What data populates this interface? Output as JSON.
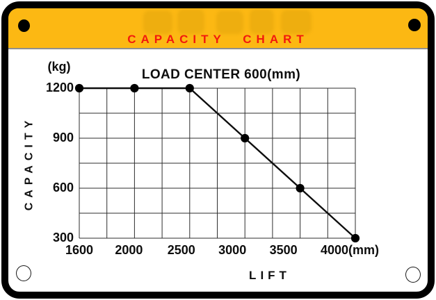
{
  "header": {
    "title": "CAPACITY CHART",
    "band_color": "#fcb813",
    "title_color": "#f2190d"
  },
  "chart_data": {
    "type": "line",
    "title": "LOAD CENTER 600(mm)",
    "xlabel": "LIFT",
    "ylabel": "CAPACITY",
    "y_unit": "(kg)",
    "x_unit": "(mm)",
    "x": [
      1600,
      2000,
      2500,
      3000,
      3500,
      4000
    ],
    "x_tick_labels": [
      "1600",
      "2000",
      "2500",
      "3000",
      "3500",
      "4000(mm)"
    ],
    "y_ticks": [
      1200,
      900,
      600,
      300
    ],
    "series": [
      {
        "name": "capacity",
        "values": [
          1200,
          1200,
          1200,
          900,
          600,
          300
        ]
      }
    ],
    "ylim": [
      300,
      1200
    ],
    "grid": true,
    "x_spacing": "equal",
    "minor_grid_divisions": 2,
    "line_color": "#0d0d0d",
    "marker_color": "#000000",
    "grid_color": "#2e2e2e",
    "legend": "none"
  }
}
